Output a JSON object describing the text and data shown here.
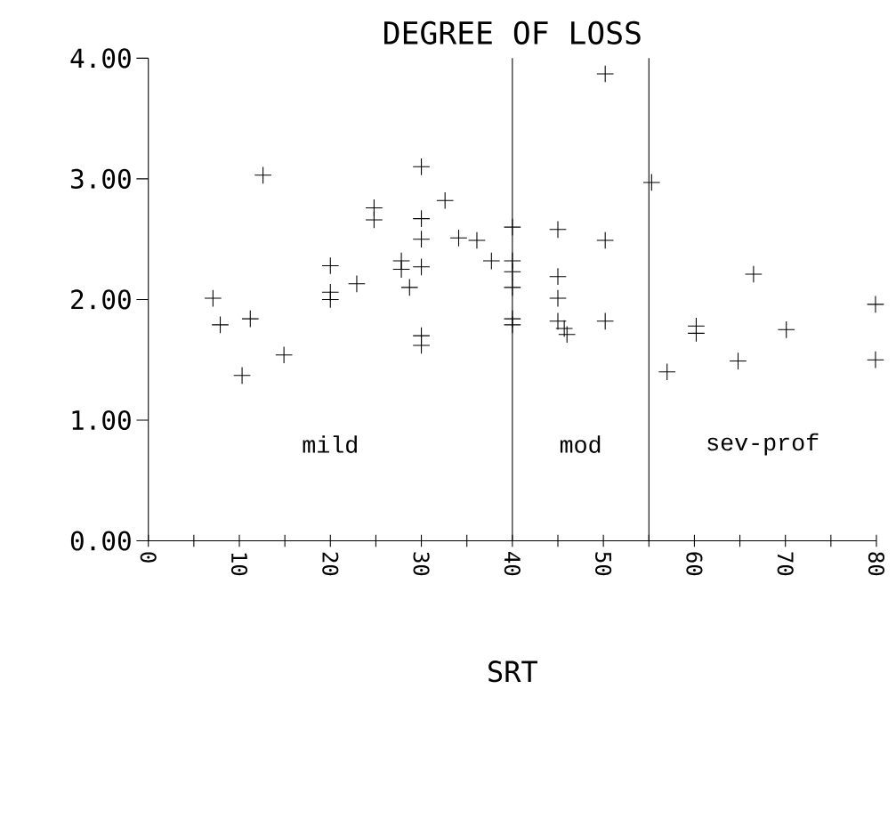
{
  "chart_data": {
    "type": "scatter",
    "title": "DEGREE OF LOSS",
    "xlabel": "SRT",
    "xlim": [
      0,
      80
    ],
    "ylim": [
      0,
      4
    ],
    "xticks": [
      {
        "value": 0,
        "label": "0"
      },
      {
        "value": 5,
        "label": null
      },
      {
        "value": 10,
        "label": "10"
      },
      {
        "value": 15,
        "label": null
      },
      {
        "value": 20,
        "label": "20"
      },
      {
        "value": 25,
        "label": null
      },
      {
        "value": 30,
        "label": "30"
      },
      {
        "value": 35,
        "label": null
      },
      {
        "value": 40,
        "label": "40"
      },
      {
        "value": 45,
        "label": null
      },
      {
        "value": 50,
        "label": "50"
      },
      {
        "value": 55,
        "label": null
      },
      {
        "value": 60,
        "label": "60"
      },
      {
        "value": 65,
        "label": null
      },
      {
        "value": 70,
        "label": "70"
      },
      {
        "value": 75,
        "label": null
      },
      {
        "value": 80,
        "label": "80"
      }
    ],
    "yticks": [
      {
        "value": 0,
        "label": "0.00"
      },
      {
        "value": 1,
        "label": "1.00"
      },
      {
        "value": 2,
        "label": "2.00"
      },
      {
        "value": 3,
        "label": "3.00"
      },
      {
        "value": 4,
        "label": "4.00"
      }
    ],
    "marker": "cross",
    "series": [
      {
        "color": "#000000",
        "x": [
          7.1,
          7.9,
          10.3,
          11.2,
          12.6,
          14.9,
          20,
          20,
          20,
          22.9,
          24.8,
          24.8,
          27.8,
          27.8,
          28.7,
          30,
          30,
          30,
          30,
          30,
          30,
          32.6,
          34.1,
          36.1,
          37.7,
          40,
          40,
          40,
          40,
          40,
          40,
          45,
          45,
          45,
          45,
          45.7,
          46,
          50.2,
          50.2,
          50.2,
          55.3,
          57,
          60.2,
          60.2,
          64.8,
          66.5,
          70.1,
          79.9,
          79.9
        ],
        "values": [
          2.01,
          1.79,
          1.37,
          1.84,
          3.03,
          1.54,
          2.28,
          2.06,
          2.0,
          2.13,
          2.76,
          2.66,
          2.32,
          2.25,
          2.1,
          3.1,
          2.67,
          2.5,
          2.27,
          1.7,
          1.62,
          2.82,
          2.51,
          2.49,
          2.32,
          2.6,
          2.32,
          2.23,
          2.1,
          1.84,
          1.79,
          2.58,
          2.19,
          2.01,
          1.82,
          1.76,
          1.71,
          3.87,
          2.49,
          1.82,
          2.97,
          1.4,
          1.78,
          1.72,
          1.49,
          2.21,
          1.75,
          1.96,
          1.5
        ]
      }
    ],
    "ref_lines": [
      {
        "axis": "x",
        "value": 40,
        "color": "#000000"
      },
      {
        "axis": "x",
        "value": 55,
        "color": "#000000"
      }
    ],
    "annotations": [
      "mild",
      "mod",
      "sev-prof"
    ]
  }
}
